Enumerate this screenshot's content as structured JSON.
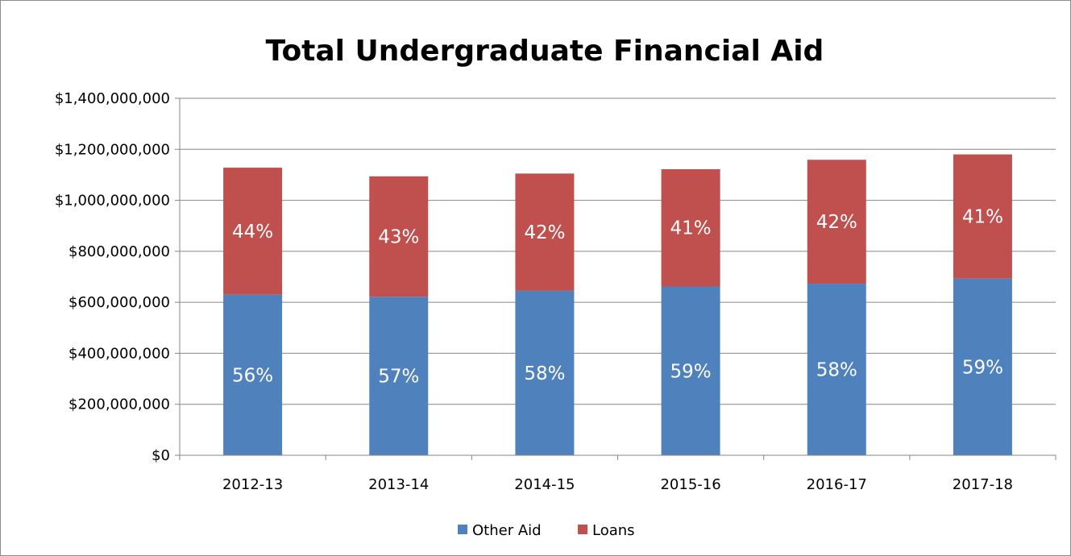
{
  "chart_data": {
    "type": "bar",
    "stacked": true,
    "title": "Total Undergraduate Financial Aid",
    "xlabel": "",
    "ylabel": "",
    "ylim": [
      0,
      1400000000
    ],
    "yticks": [
      0,
      200000000,
      400000000,
      600000000,
      800000000,
      1000000000,
      1200000000,
      1400000000
    ],
    "ytick_labels": [
      "$0",
      "$200,000,000",
      "$400,000,000",
      "$600,000,000",
      "$800,000,000",
      "$1,000,000,000",
      "$1,200,000,000",
      "$1,400,000,000"
    ],
    "grid": true,
    "legend": "bottom",
    "categories": [
      "2012-13",
      "2013-14",
      "2014-15",
      "2015-16",
      "2016-17",
      "2017-18"
    ],
    "series": [
      {
        "name": "Other Aid",
        "color": "#4f81bd",
        "values": [
          630000000,
          622000000,
          645000000,
          662000000,
          673000000,
          693000000
        ],
        "labels": [
          "56%",
          "57%",
          "58%",
          "59%",
          "58%",
          "59%"
        ]
      },
      {
        "name": "Loans",
        "color": "#c0504d",
        "values": [
          498000000,
          472000000,
          460000000,
          460000000,
          486000000,
          487000000
        ],
        "labels": [
          "44%",
          "43%",
          "42%",
          "41%",
          "42%",
          "41%"
        ]
      }
    ]
  }
}
